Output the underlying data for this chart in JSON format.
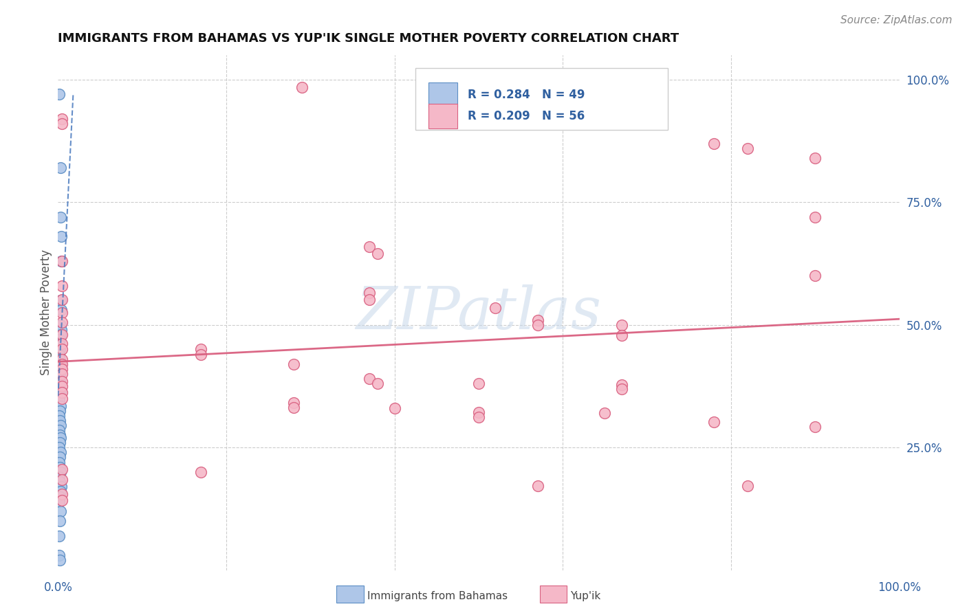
{
  "title": "IMMIGRANTS FROM BAHAMAS VS YUP'IK SINGLE MOTHER POVERTY CORRELATION CHART",
  "source": "Source: ZipAtlas.com",
  "ylabel": "Single Mother Poverty",
  "legend_blue_label": "Immigrants from Bahamas",
  "legend_pink_label": "Yup'ik",
  "R_blue": 0.284,
  "N_blue": 49,
  "R_pink": 0.209,
  "N_pink": 56,
  "blue_color": "#aec6e8",
  "blue_edge_color": "#5b8ec4",
  "pink_color": "#f5b8c8",
  "pink_edge_color": "#d96080",
  "blue_line_color": "#4a7abf",
  "pink_line_color": "#d96080",
  "background_color": "#ffffff",
  "grid_color": "#cccccc",
  "blue_scatter": [
    [
      0.001,
      0.97
    ],
    [
      0.003,
      0.82
    ],
    [
      0.003,
      0.72
    ],
    [
      0.004,
      0.68
    ],
    [
      0.004,
      0.63
    ],
    [
      0.003,
      0.55
    ],
    [
      0.004,
      0.53
    ],
    [
      0.003,
      0.5
    ],
    [
      0.004,
      0.49
    ],
    [
      0.003,
      0.48
    ],
    [
      0.002,
      0.47
    ],
    [
      0.001,
      0.46
    ],
    [
      0.002,
      0.45
    ],
    [
      0.001,
      0.44
    ],
    [
      0.002,
      0.43
    ],
    [
      0.003,
      0.42
    ],
    [
      0.001,
      0.41
    ],
    [
      0.002,
      0.4
    ],
    [
      0.002,
      0.385
    ],
    [
      0.001,
      0.375
    ],
    [
      0.003,
      0.365
    ],
    [
      0.002,
      0.355
    ],
    [
      0.001,
      0.345
    ],
    [
      0.003,
      0.335
    ],
    [
      0.002,
      0.325
    ],
    [
      0.001,
      0.315
    ],
    [
      0.002,
      0.305
    ],
    [
      0.003,
      0.295
    ],
    [
      0.001,
      0.285
    ],
    [
      0.002,
      0.275
    ],
    [
      0.003,
      0.27
    ],
    [
      0.002,
      0.26
    ],
    [
      0.001,
      0.25
    ],
    [
      0.003,
      0.24
    ],
    [
      0.002,
      0.23
    ],
    [
      0.001,
      0.22
    ],
    [
      0.002,
      0.21
    ],
    [
      0.003,
      0.2
    ],
    [
      0.001,
      0.19
    ],
    [
      0.002,
      0.18
    ],
    [
      0.004,
      0.17
    ],
    [
      0.003,
      0.16
    ],
    [
      0.002,
      0.15
    ],
    [
      0.001,
      0.14
    ],
    [
      0.003,
      0.12
    ],
    [
      0.002,
      0.1
    ],
    [
      0.001,
      0.07
    ],
    [
      0.001,
      0.03
    ],
    [
      0.002,
      0.02
    ]
  ],
  "pink_scatter": [
    [
      0.29,
      0.985
    ],
    [
      0.005,
      0.92
    ],
    [
      0.005,
      0.91
    ],
    [
      0.78,
      0.87
    ],
    [
      0.82,
      0.86
    ],
    [
      0.37,
      0.66
    ],
    [
      0.38,
      0.645
    ],
    [
      0.005,
      0.63
    ],
    [
      0.005,
      0.58
    ],
    [
      0.37,
      0.565
    ],
    [
      0.37,
      0.552
    ],
    [
      0.52,
      0.535
    ],
    [
      0.005,
      0.525
    ],
    [
      0.57,
      0.51
    ],
    [
      0.005,
      0.505
    ],
    [
      0.57,
      0.5
    ],
    [
      0.67,
      0.5
    ],
    [
      0.005,
      0.48
    ],
    [
      0.67,
      0.478
    ],
    [
      0.005,
      0.462
    ],
    [
      0.005,
      0.45
    ],
    [
      0.17,
      0.45
    ],
    [
      0.17,
      0.44
    ],
    [
      0.005,
      0.43
    ],
    [
      0.005,
      0.42
    ],
    [
      0.28,
      0.42
    ],
    [
      0.005,
      0.41
    ],
    [
      0.005,
      0.4
    ],
    [
      0.37,
      0.39
    ],
    [
      0.005,
      0.385
    ],
    [
      0.005,
      0.375
    ],
    [
      0.38,
      0.38
    ],
    [
      0.5,
      0.38
    ],
    [
      0.67,
      0.378
    ],
    [
      0.67,
      0.37
    ],
    [
      0.005,
      0.362
    ],
    [
      0.005,
      0.35
    ],
    [
      0.28,
      0.342
    ],
    [
      0.28,
      0.332
    ],
    [
      0.4,
      0.33
    ],
    [
      0.5,
      0.322
    ],
    [
      0.5,
      0.312
    ],
    [
      0.65,
      0.32
    ],
    [
      0.78,
      0.302
    ],
    [
      0.9,
      0.292
    ],
    [
      0.005,
      0.205
    ],
    [
      0.005,
      0.185
    ],
    [
      0.17,
      0.2
    ],
    [
      0.005,
      0.155
    ],
    [
      0.005,
      0.142
    ],
    [
      0.57,
      0.172
    ],
    [
      0.82,
      0.172
    ],
    [
      0.9,
      0.6
    ],
    [
      0.9,
      0.72
    ],
    [
      0.9,
      0.84
    ],
    [
      0.005,
      0.552
    ]
  ],
  "blue_trend_x": [
    0.0,
    0.018
  ],
  "blue_trend_y": [
    0.355,
    0.97
  ],
  "pink_trend_x": [
    0.0,
    1.0
  ],
  "pink_trend_y": [
    0.425,
    0.512
  ],
  "xlim": [
    0.0,
    1.0
  ],
  "ylim": [
    0.0,
    1.05
  ],
  "right_yticks": [
    1.0,
    0.75,
    0.5,
    0.25
  ],
  "right_yticklabels": [
    "100.0%",
    "75.0%",
    "50.0%",
    "25.0%"
  ],
  "title_fontsize": 13,
  "source_fontsize": 11
}
